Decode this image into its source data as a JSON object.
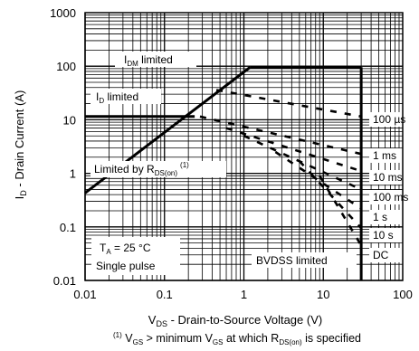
{
  "chart_data": {
    "type": "line",
    "xlabel_main": "V",
    "xlabel_sub": "DS",
    "xlabel_rest": " - Drain-to-Source Voltage (V)",
    "ylabel_main": "I",
    "ylabel_sub": "D",
    "ylabel_rest": " - Drain Current (A)",
    "xscale": "log",
    "yscale": "log",
    "xlim": [
      0.01,
      100
    ],
    "ylim": [
      0.01,
      1000
    ],
    "grid": true,
    "xticks": [
      {
        "v": 0.01,
        "label": "0.01"
      },
      {
        "v": 0.1,
        "label": "0.1"
      },
      {
        "v": 1,
        "label": "1"
      },
      {
        "v": 10,
        "label": "10"
      },
      {
        "v": 100,
        "label": "100"
      }
    ],
    "yticks": [
      {
        "v": 0.01,
        "label": "0.01"
      },
      {
        "v": 0.1,
        "label": "0.1"
      },
      {
        "v": 1,
        "label": "1"
      },
      {
        "v": 10,
        "label": "10"
      },
      {
        "v": 100,
        "label": "100"
      },
      {
        "v": 1000,
        "label": "1000"
      }
    ],
    "boundaries": [
      {
        "label": "IDM limited",
        "x": [
          1.2,
          30
        ],
        "y": [
          96,
          96
        ]
      },
      {
        "label": "ID limited",
        "x": [
          0.01,
          0.24
        ],
        "y": [
          11.5,
          11.5
        ]
      },
      {
        "label": "Limited by RDS(on)",
        "x": [
          0.01,
          1.2
        ],
        "y": [
          0.43,
          96
        ]
      },
      {
        "label": "BVDSS limited",
        "x": [
          30,
          30
        ],
        "y": [
          0.01,
          96
        ]
      }
    ],
    "series": [
      {
        "name": "100 µs",
        "x": [
          0.45,
          30
        ],
        "y": [
          36,
          11.5
        ]
      },
      {
        "name": "1 ms",
        "x": [
          0.28,
          30
        ],
        "y": [
          11.5,
          2.3
        ]
      },
      {
        "name": "10 ms",
        "x": [
          0.6,
          30
        ],
        "y": [
          7,
          1.1
        ]
      },
      {
        "name": "100 ms",
        "x": [
          1.0,
          30
        ],
        "y": [
          5,
          0.5
        ]
      },
      {
        "name": "1 s",
        "x": [
          2.5,
          30
        ],
        "y": [
          2.5,
          0.22
        ]
      },
      {
        "name": "10 s",
        "x": [
          5,
          30
        ],
        "y": [
          1.7,
          0.095
        ]
      },
      {
        "name": "DC",
        "x": [
          9,
          30
        ],
        "y": [
          0.9,
          0.045
        ]
      }
    ],
    "annotations": {
      "idm_main": "I",
      "idm_sub": "DM",
      "idm_rest": " limited",
      "id_main": "I",
      "id_sub": "D",
      "id_rest": " limited",
      "rds_main": "Limited by R",
      "rds_sub": "DS(on)",
      "rds_sup": "(1)",
      "ta_main": "T",
      "ta_sub": "A",
      "ta_rest": " = 25 °C",
      "single_pulse": "Single pulse",
      "bvdss": "BVDSS limited"
    },
    "footnote": {
      "sup": "(1)",
      "v1": " V",
      "s1": "GS",
      "t1": " > minimum V",
      "s2": "GS",
      "t2": " at which R",
      "s3": "DS(on)",
      "t3": " is specified"
    }
  }
}
